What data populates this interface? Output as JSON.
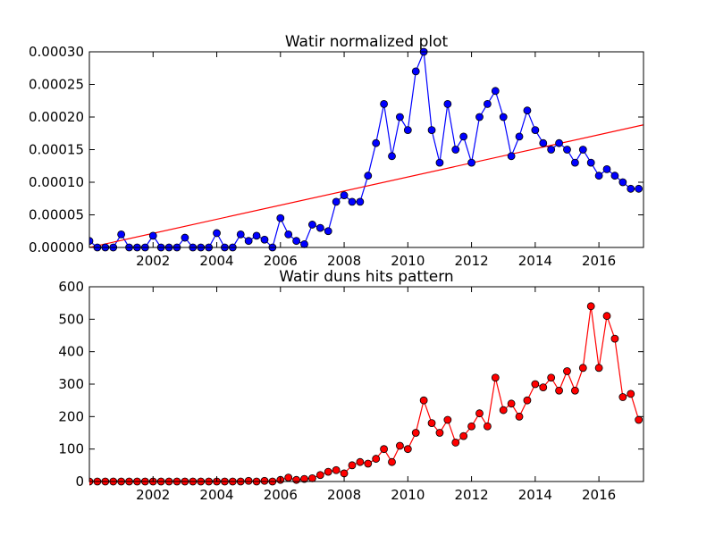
{
  "chart_data": [
    {
      "type": "line",
      "title": "Watir normalized plot",
      "color": "#0000ff",
      "x": [
        2000,
        2000.25,
        2000.5,
        2000.75,
        2001,
        2001.25,
        2001.5,
        2001.75,
        2002,
        2002.25,
        2002.5,
        2002.75,
        2003,
        2003.25,
        2003.5,
        2003.75,
        2004,
        2004.25,
        2004.5,
        2004.75,
        2005,
        2005.25,
        2005.5,
        2005.75,
        2006,
        2006.25,
        2006.5,
        2006.75,
        2007,
        2007.25,
        2007.5,
        2007.75,
        2008,
        2008.25,
        2008.5,
        2008.75,
        2009,
        2009.25,
        2009.5,
        2009.75,
        2010,
        2010.25,
        2010.5,
        2010.75,
        2011,
        2011.25,
        2011.5,
        2011.75,
        2012,
        2012.25,
        2012.5,
        2012.75,
        2013,
        2013.25,
        2013.5,
        2013.75,
        2014,
        2014.25,
        2014.5,
        2014.75,
        2015,
        2015.25,
        2015.5,
        2015.75,
        2016,
        2016.25,
        2016.5,
        2016.75,
        2017,
        2017.25
      ],
      "values": [
        1e-05,
        0,
        0,
        0,
        2e-05,
        0,
        0,
        0,
        1.8e-05,
        0,
        0,
        0,
        1.5e-05,
        0,
        0,
        0,
        2.2e-05,
        0,
        0,
        2e-05,
        1e-05,
        1.8e-05,
        1.2e-05,
        0,
        4.5e-05,
        2e-05,
        1e-05,
        5e-06,
        3.5e-05,
        3e-05,
        2.5e-05,
        7e-05,
        8e-05,
        7e-05,
        7e-05,
        0.00011,
        0.00016,
        0.00022,
        0.00014,
        0.0002,
        0.00018,
        0.00027,
        0.0003,
        0.00018,
        0.00013,
        0.00022,
        0.00015,
        0.00017,
        0.00013,
        0.0002,
        0.00022,
        0.00024,
        0.0002,
        0.00014,
        0.00017,
        0.00021,
        0.00018,
        0.00016,
        0.00015,
        0.00016,
        0.00015,
        0.00013,
        0.00015,
        0.00013,
        0.00011,
        0.00012,
        0.00011,
        0.0001,
        9e-05,
        9e-05
      ],
      "trend": {
        "x": [
          2000,
          2017.4
        ],
        "values": [
          0,
          0.000188
        ],
        "color": "#ff0000"
      },
      "xlim": [
        2000,
        2017.4
      ],
      "xticks": [
        2002,
        2004,
        2006,
        2008,
        2010,
        2012,
        2014,
        2016
      ],
      "ylim": [
        0,
        0.0003
      ],
      "yticks": [
        {
          "value": 0,
          "label": "0.00000"
        },
        {
          "value": 5e-05,
          "label": "0.00005"
        },
        {
          "value": 0.0001,
          "label": "0.00010"
        },
        {
          "value": 0.00015,
          "label": "0.00015"
        },
        {
          "value": 0.0002,
          "label": "0.00020"
        },
        {
          "value": 0.00025,
          "label": "0.00025"
        },
        {
          "value": 0.0003,
          "label": "0.00030"
        }
      ]
    },
    {
      "type": "line",
      "title": "Watir duns hits pattern",
      "color": "#ff0000",
      "x": [
        2000,
        2000.25,
        2000.5,
        2000.75,
        2001,
        2001.25,
        2001.5,
        2001.75,
        2002,
        2002.25,
        2002.5,
        2002.75,
        2003,
        2003.25,
        2003.5,
        2003.75,
        2004,
        2004.25,
        2004.5,
        2004.75,
        2005,
        2005.25,
        2005.5,
        2005.75,
        2006,
        2006.25,
        2006.5,
        2006.75,
        2007,
        2007.25,
        2007.5,
        2007.75,
        2008,
        2008.25,
        2008.5,
        2008.75,
        2009,
        2009.25,
        2009.5,
        2009.75,
        2010,
        2010.25,
        2010.5,
        2010.75,
        2011,
        2011.25,
        2011.5,
        2011.75,
        2012,
        2012.25,
        2012.5,
        2012.75,
        2013,
        2013.25,
        2013.5,
        2013.75,
        2014,
        2014.25,
        2014.5,
        2014.75,
        2015,
        2015.25,
        2015.5,
        2015.75,
        2016,
        2016.25,
        2016.5,
        2016.75,
        2017,
        2017.25
      ],
      "values": [
        0,
        0,
        0,
        0,
        0,
        0,
        0,
        0,
        0,
        0,
        0,
        0,
        0,
        0,
        0,
        0,
        0,
        0,
        0,
        0,
        2,
        0,
        2,
        0,
        5,
        12,
        5,
        8,
        10,
        20,
        30,
        35,
        25,
        50,
        60,
        55,
        70,
        100,
        60,
        110,
        100,
        150,
        250,
        180,
        150,
        190,
        120,
        140,
        170,
        210,
        170,
        320,
        220,
        240,
        200,
        250,
        300,
        290,
        320,
        280,
        340,
        280,
        350,
        540,
        350,
        510,
        440,
        260,
        270,
        190
      ],
      "xlim": [
        2000,
        2017.4
      ],
      "xticks": [
        2002,
        2004,
        2006,
        2008,
        2010,
        2012,
        2014,
        2016
      ],
      "ylim": [
        0,
        600
      ],
      "yticks": [
        0,
        100,
        200,
        300,
        400,
        500,
        600
      ]
    }
  ]
}
